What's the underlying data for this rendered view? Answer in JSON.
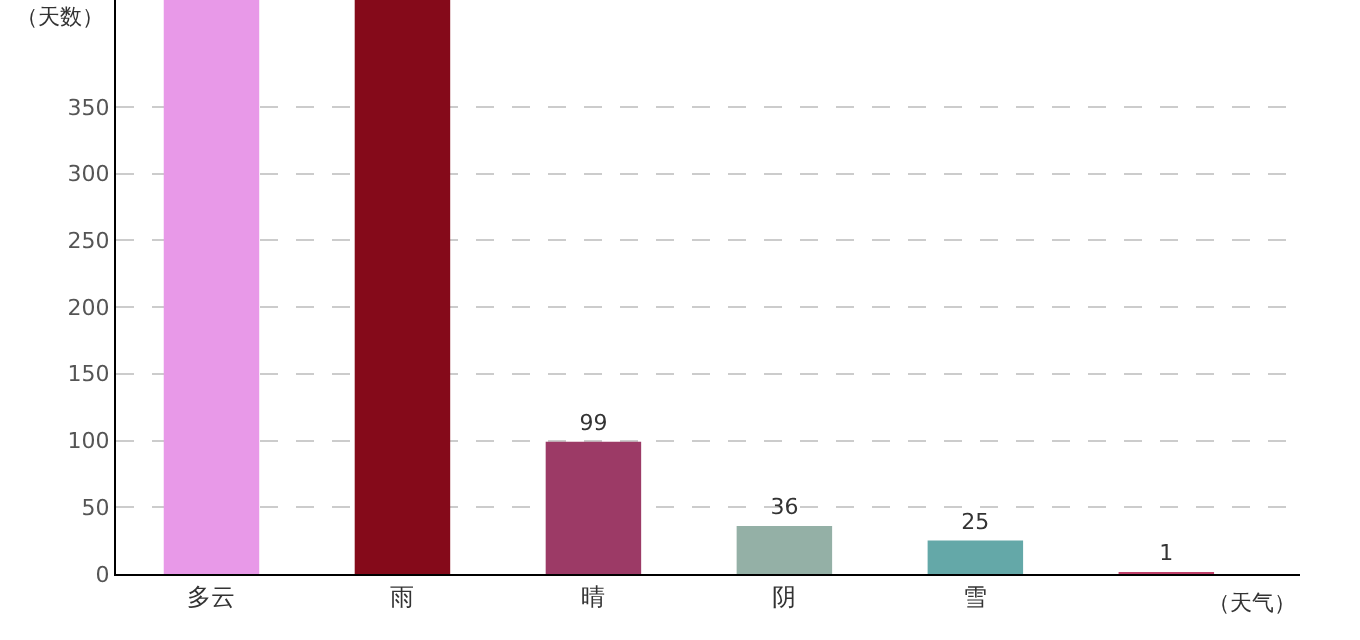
{
  "chart_data": {
    "type": "bar",
    "xlabel": "（天气）",
    "ylabel": "（天数）",
    "categories": [
      "多云",
      "雨",
      "晴",
      "阴",
      "雪",
      null
    ],
    "values": [
      430,
      430,
      99,
      36,
      25,
      1
    ],
    "colors": [
      "#e899e8",
      "#850a1a",
      "#9c3a66",
      "#94b0a6",
      "#64a8a8",
      "#c0406a"
    ],
    "value_labels": [
      null,
      null,
      "99",
      "36",
      "25",
      "1"
    ],
    "ylim": [
      0,
      430
    ],
    "yticks": [
      0,
      50,
      100,
      150,
      200,
      250,
      300,
      350
    ],
    "grid": "y",
    "legend": false
  }
}
